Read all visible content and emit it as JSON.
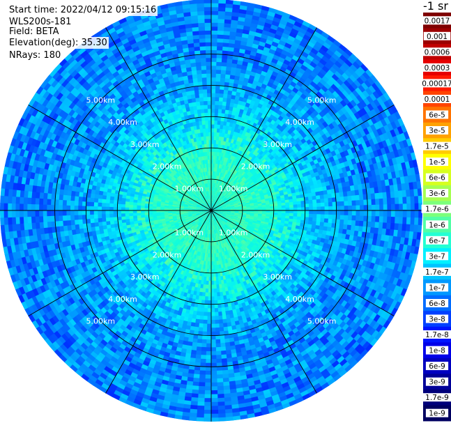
{
  "header": {
    "start_time": "Start time: 2022/04/12 09:15:16",
    "instrument": "WLS200s-181",
    "field": "Field: BETA",
    "elevation": "Elevation(deg): 35.30",
    "nrays": "NRays: 180"
  },
  "colorbar": {
    "unit_label": "-1 sr",
    "entries": [
      {
        "label": "0.0017",
        "color": "#7f0000"
      },
      {
        "label": "0.001",
        "color": "#9c0000"
      },
      {
        "label": "0.0006",
        "color": "#c00000"
      },
      {
        "label": "0.0003",
        "color": "#e60000"
      },
      {
        "label": "0.00017",
        "color": "#ff1a00"
      },
      {
        "label": "0.0001",
        "color": "#ff4400"
      },
      {
        "label": "6e-5",
        "color": "#ff7300"
      },
      {
        "label": "3e-5",
        "color": "#ffa100"
      },
      {
        "label": "1.7e-5",
        "color": "#ffcc00"
      },
      {
        "label": "1e-5",
        "color": "#ffff00"
      },
      {
        "label": "6e-6",
        "color": "#d6ff1f"
      },
      {
        "label": "3e-6",
        "color": "#a6ff51"
      },
      {
        "label": "1.7e-6",
        "color": "#7bff7b"
      },
      {
        "label": "1e-6",
        "color": "#51ffa6"
      },
      {
        "label": "6e-7",
        "color": "#24ffd3"
      },
      {
        "label": "3e-7",
        "color": "#00f0ff"
      },
      {
        "label": "1.7e-7",
        "color": "#00c4ff"
      },
      {
        "label": "1e-7",
        "color": "#0098ff"
      },
      {
        "label": "6e-8",
        "color": "#006cff"
      },
      {
        "label": "3e-8",
        "color": "#0040ff"
      },
      {
        "label": "1.7e-8",
        "color": "#0014ff"
      },
      {
        "label": "1e-8",
        "color": "#0000e8"
      },
      {
        "label": "6e-9",
        "color": "#0000c0"
      },
      {
        "label": "3e-9",
        "color": "#000098"
      },
      {
        "label": "1.7e-9",
        "color": "#00007a"
      },
      {
        "label": "1e-9",
        "color": "#000060"
      }
    ]
  },
  "chart_data": {
    "type": "heatmap",
    "projection": "polar (PPI scan)",
    "field": "BETA",
    "rings_km": [
      1,
      2,
      3,
      4,
      5
    ],
    "ring_labels": [
      "1.00km",
      "2.00km",
      "3.00km",
      "4.00km",
      "5.00km"
    ],
    "spokes_deg": [
      0,
      30,
      60,
      90,
      120,
      150,
      180,
      210,
      240,
      270,
      300,
      330
    ],
    "max_range_km": 6.75,
    "color_scale": "log",
    "value_range": [
      1e-09,
      0.0017
    ],
    "radial_profile_log10": [
      {
        "range_km": 0.0,
        "value": -6.45
      },
      {
        "range_km": 0.5,
        "value": -6.5
      },
      {
        "range_km": 1.0,
        "value": -6.45
      },
      {
        "range_km": 1.5,
        "value": -6.5
      },
      {
        "range_km": 2.0,
        "value": -6.6
      },
      {
        "range_km": 2.5,
        "value": -6.8
      },
      {
        "range_km": 3.0,
        "value": -7.05
      },
      {
        "range_km": 3.5,
        "value": -7.2
      },
      {
        "range_km": 4.0,
        "value": -7.4
      },
      {
        "range_km": 5.0,
        "value": -7.55
      },
      {
        "range_km": 6.0,
        "value": -7.6
      },
      {
        "range_km": 6.75,
        "value": -7.65
      }
    ],
    "grid": true,
    "legend": "right colorbar"
  }
}
